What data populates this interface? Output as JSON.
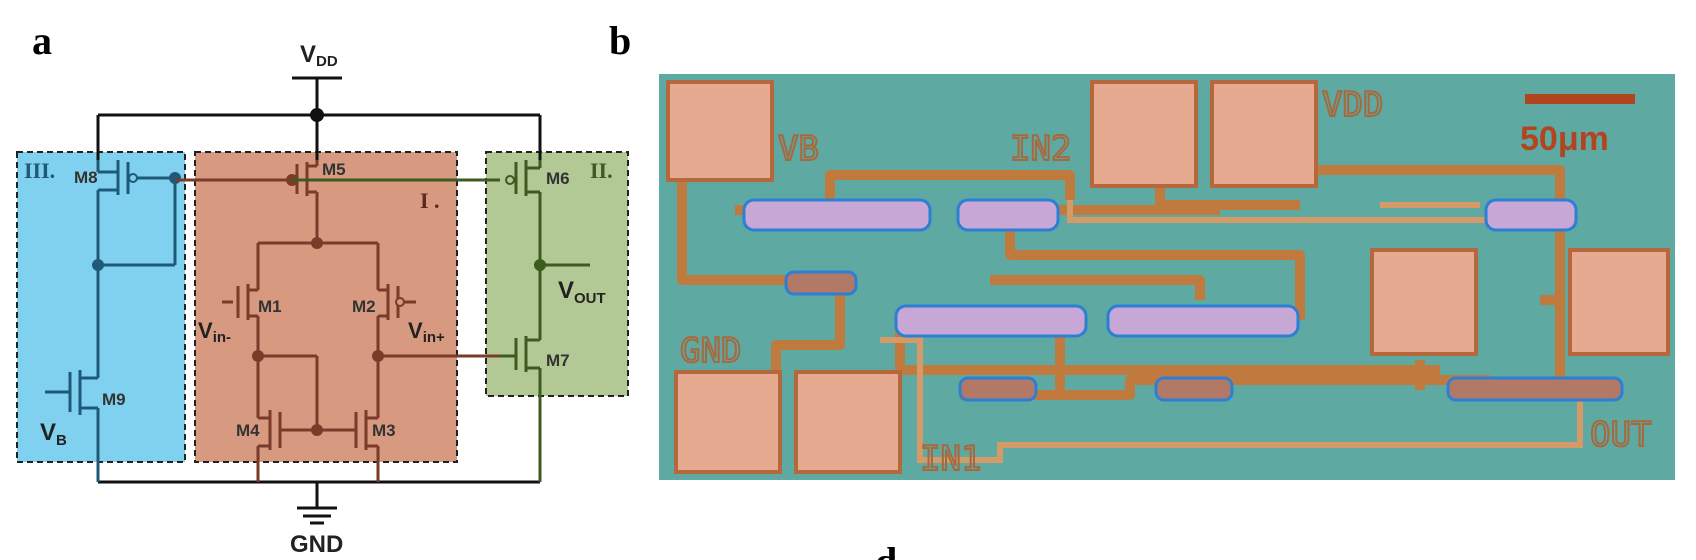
{
  "panels": {
    "a": "a",
    "b": "b",
    "d": "d"
  },
  "circuit": {
    "vdd": "V",
    "vdd_sub": "DD",
    "gnd": "GND",
    "vout": "V",
    "vout_sub": "OUT",
    "vb": "V",
    "vb_sub": "B",
    "vin_minus": "V",
    "vin_minus_sub": "in-",
    "vin_plus": "V",
    "vin_plus_sub": "in+",
    "regions": {
      "one": "I .",
      "two": "II.",
      "three": "III."
    },
    "transistors": [
      "M1",
      "M2",
      "M3",
      "M4",
      "M5",
      "M6",
      "M7",
      "M8",
      "M9"
    ],
    "colors": {
      "region_one": "#d79a80",
      "region_two": "#b2c996",
      "region_three": "#7fd1ef",
      "wire_one": "#7a3b28",
      "wire_two": "#3d5a1f",
      "wire_three": "#1e5a78"
    }
  },
  "micrograph": {
    "labels": {
      "vb": "VB",
      "in2": "IN2",
      "vdd": "VDD",
      "gnd": "GND",
      "in1": "IN1",
      "out": "OUT"
    },
    "scale_bar": "50μm",
    "colors": {
      "substrate": "#5fa9a3",
      "pad": "#e6aa90",
      "trace": "#c07a3e",
      "scale": "#b1451f"
    }
  }
}
